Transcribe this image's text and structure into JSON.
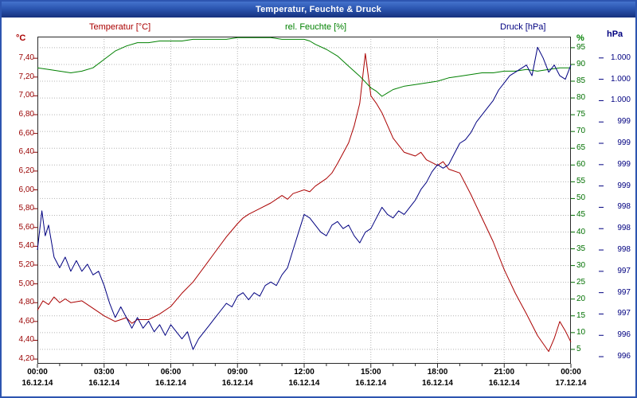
{
  "window": {
    "title": "Temperatur, Feuchte & Druck"
  },
  "legend": {
    "temperature": "Temperatur [°C]",
    "humidity": "rel. Feuchte [%]",
    "pressure": "Druck [hPa]"
  },
  "colors": {
    "temperature": "#aa0000",
    "humidity": "#008000",
    "pressure": "#000080",
    "grid": "#b4b4b4",
    "frame": "#2d55b0"
  },
  "chart_data": {
    "type": "line",
    "title": "Temperatur, Feuchte & Druck",
    "grid": "dotted",
    "x_axis": {
      "unit": "hours",
      "range": [
        0,
        24
      ],
      "gridline_hours": [
        3,
        6,
        9,
        12,
        15,
        18,
        21
      ],
      "ticks": [
        {
          "h": 0,
          "time": "00:00",
          "date": "16.12.14"
        },
        {
          "h": 3,
          "time": "03:00",
          "date": "16.12.14"
        },
        {
          "h": 6,
          "time": "06:00",
          "date": "16.12.14"
        },
        {
          "h": 9,
          "time": "09:00",
          "date": "16.12.14"
        },
        {
          "h": 12,
          "time": "12:00",
          "date": "16.12.14"
        },
        {
          "h": 15,
          "time": "15:00",
          "date": "16.12.14"
        },
        {
          "h": 18,
          "time": "18:00",
          "date": "16.12.14"
        },
        {
          "h": 21,
          "time": "21:00",
          "date": "16.12.14"
        },
        {
          "h": 24,
          "time": "00:00",
          "date": "17.12.14"
        }
      ]
    },
    "axes": {
      "temperature": {
        "unit": "°C",
        "side": "left",
        "color": "#990000",
        "plot_range": [
          4.15,
          7.63
        ],
        "tick_values": [
          7.4,
          7.2,
          7.0,
          6.8,
          6.6,
          6.4,
          6.2,
          6.0,
          5.8,
          5.6,
          5.4,
          5.2,
          5.0,
          4.8,
          4.6,
          4.4,
          4.2
        ],
        "tick_labels": [
          "7,40",
          "7,20",
          "7,00",
          "6,80",
          "6,60",
          "6,40",
          "6,20",
          "6,00",
          "5,80",
          "5,60",
          "5,40",
          "5,20",
          "5,00",
          "4,80",
          "4,60",
          "4,40",
          "4,20"
        ]
      },
      "humidity": {
        "unit": "%",
        "side": "right",
        "color": "#007000",
        "plot_range": [
          0.7,
          98.3
        ],
        "tick_values": [
          95,
          90,
          85,
          80,
          75,
          70,
          65,
          60,
          55,
          50,
          45,
          40,
          35,
          30,
          25,
          20,
          15,
          10,
          5
        ],
        "tick_labels": [
          "95",
          "90",
          "85",
          "80",
          "75",
          "70",
          "65",
          "60",
          "55",
          "50",
          "45",
          "40",
          "35",
          "30",
          "25",
          "20",
          "15",
          "10",
          "5"
        ]
      },
      "pressure": {
        "unit": "hPa",
        "side": "far-right",
        "color": "#000080",
        "plot_range": [
          996.0,
          1000.6
        ],
        "tick_values": [
          1000.3,
          1000.0,
          999.7,
          999.4,
          999.1,
          998.8,
          998.5,
          998.2,
          997.9,
          997.6,
          997.3,
          997.0,
          996.7,
          996.4,
          996.1
        ],
        "tick_labels": [
          "1.000",
          "1.000",
          "1.000",
          "999",
          "999",
          "999",
          "999",
          "998",
          "998",
          "998",
          "997",
          "997",
          "997",
          "996",
          "996"
        ]
      }
    },
    "series": [
      {
        "key": "temperature",
        "name": "Temperatur",
        "unit": "°C",
        "axis": "temperature",
        "color": "#aa0000",
        "x": [
          0,
          0.25,
          0.5,
          0.75,
          1,
          1.25,
          1.5,
          2,
          2.5,
          3,
          3.5,
          4,
          4.25,
          4.5,
          5,
          5.5,
          6,
          6.5,
          7,
          7.5,
          8,
          8.5,
          9,
          9.25,
          9.5,
          10,
          10.5,
          11,
          11.25,
          11.5,
          12,
          12.25,
          12.5,
          13,
          13.25,
          13.5,
          14,
          14.25,
          14.5,
          14.75,
          15,
          15.25,
          15.5,
          16,
          16.5,
          17,
          17.25,
          17.5,
          18,
          18.25,
          18.5,
          19,
          19.5,
          20,
          20.5,
          21,
          21.5,
          22,
          22.5,
          23,
          23.25,
          23.5,
          23.75,
          24
        ],
        "y": [
          4.72,
          4.82,
          4.78,
          4.86,
          4.8,
          4.84,
          4.8,
          4.82,
          4.74,
          4.66,
          4.6,
          4.64,
          4.58,
          4.62,
          4.62,
          4.68,
          4.76,
          4.9,
          5.02,
          5.18,
          5.34,
          5.5,
          5.64,
          5.7,
          5.74,
          5.8,
          5.86,
          5.94,
          5.9,
          5.96,
          6.0,
          5.98,
          6.04,
          6.12,
          6.18,
          6.28,
          6.5,
          6.68,
          6.92,
          7.45,
          7.0,
          6.92,
          6.82,
          6.55,
          6.4,
          6.36,
          6.4,
          6.32,
          6.26,
          6.3,
          6.22,
          6.18,
          5.95,
          5.7,
          5.45,
          5.15,
          4.9,
          4.68,
          4.45,
          4.28,
          4.42,
          4.6,
          4.5,
          4.38
        ]
      },
      {
        "key": "humidity",
        "name": "rel. Feuchte",
        "unit": "%",
        "axis": "humidity",
        "color": "#008000",
        "x": [
          0,
          0.5,
          1,
          1.5,
          2,
          2.5,
          3,
          3.5,
          4,
          4.5,
          5,
          5.5,
          6,
          6.5,
          7,
          7.5,
          8,
          8.5,
          9,
          9.5,
          10,
          10.5,
          11,
          11.5,
          12,
          12.25,
          12.5,
          13,
          13.5,
          14,
          14.5,
          15,
          15.25,
          15.5,
          15.75,
          16,
          16.5,
          17,
          17.5,
          18,
          18.5,
          19,
          19.5,
          20,
          20.5,
          21,
          21.5,
          22,
          22.5,
          23,
          23.5,
          24
        ],
        "y": [
          89,
          88.5,
          88,
          87.5,
          88,
          89,
          91.5,
          94,
          95.5,
          96.5,
          96.5,
          97,
          97,
          97,
          97.5,
          97.5,
          97.5,
          97.5,
          98,
          98,
          98,
          98,
          97.5,
          97.5,
          97.5,
          97,
          96,
          94.5,
          92.5,
          89.5,
          86.5,
          83,
          82,
          80.5,
          81.5,
          82.5,
          83.5,
          84,
          84.5,
          85,
          86,
          86.5,
          87,
          87.5,
          87.5,
          88,
          88,
          88.5,
          88,
          88.5,
          89,
          89
        ]
      },
      {
        "key": "pressure",
        "name": "Druck",
        "unit": "hPa",
        "axis": "pressure",
        "color": "#000080",
        "x": [
          0,
          0.2,
          0.35,
          0.5,
          0.75,
          1,
          1.25,
          1.5,
          1.75,
          2,
          2.25,
          2.5,
          2.75,
          3,
          3.25,
          3.5,
          3.75,
          4,
          4.25,
          4.5,
          4.75,
          5,
          5.25,
          5.5,
          5.75,
          6,
          6.25,
          6.5,
          6.75,
          7,
          7.25,
          7.5,
          7.75,
          8,
          8.25,
          8.5,
          8.75,
          9,
          9.25,
          9.5,
          9.75,
          10,
          10.25,
          10.5,
          10.75,
          11,
          11.25,
          11.5,
          11.75,
          12,
          12.25,
          12.5,
          12.75,
          13,
          13.25,
          13.5,
          13.75,
          14,
          14.25,
          14.5,
          14.75,
          15,
          15.25,
          15.5,
          15.75,
          16,
          16.25,
          16.5,
          16.75,
          17,
          17.25,
          17.5,
          17.75,
          18,
          18.25,
          18.5,
          18.75,
          19,
          19.25,
          19.5,
          19.75,
          20,
          20.25,
          20.5,
          20.75,
          21,
          21.25,
          21.5,
          21.75,
          22,
          22.25,
          22.5,
          22.75,
          23,
          23.25,
          23.5,
          23.75,
          24
        ],
        "y": [
          997.6,
          998.15,
          997.8,
          997.95,
          997.5,
          997.35,
          997.5,
          997.3,
          997.45,
          997.3,
          997.4,
          997.25,
          997.3,
          997.1,
          996.85,
          996.65,
          996.8,
          996.65,
          996.5,
          996.65,
          996.5,
          996.6,
          996.45,
          996.55,
          996.4,
          996.55,
          996.45,
          996.35,
          996.45,
          996.2,
          996.35,
          996.45,
          996.55,
          996.65,
          996.75,
          996.85,
          996.8,
          996.95,
          997.0,
          996.9,
          997.0,
          996.95,
          997.1,
          997.15,
          997.1,
          997.25,
          997.35,
          997.6,
          997.85,
          998.1,
          998.05,
          997.95,
          997.85,
          997.8,
          997.95,
          998.0,
          997.9,
          997.95,
          997.8,
          997.7,
          997.85,
          997.9,
          998.05,
          998.2,
          998.1,
          998.05,
          998.15,
          998.1,
          998.2,
          998.3,
          998.45,
          998.55,
          998.7,
          998.8,
          998.75,
          998.8,
          998.95,
          999.1,
          999.15,
          999.25,
          999.4,
          999.5,
          999.6,
          999.7,
          999.85,
          999.95,
          1000.05,
          1000.1,
          1000.15,
          1000.2,
          1000.05,
          1000.45,
          1000.3,
          1000.1,
          1000.2,
          1000.05,
          1000.0,
          1000.2
        ]
      }
    ]
  }
}
